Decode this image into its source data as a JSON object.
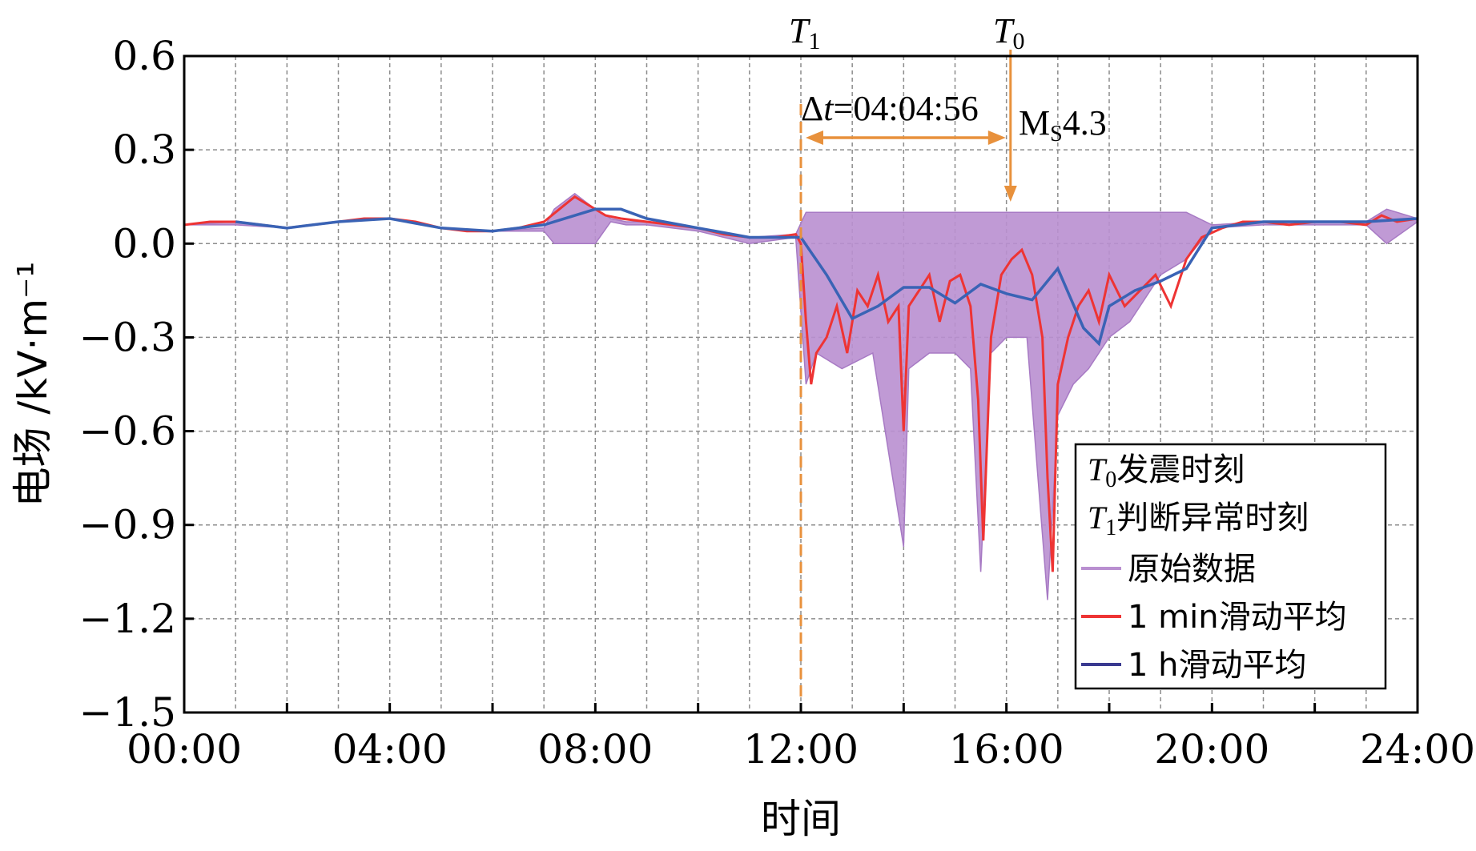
{
  "chart_data": {
    "type": "line",
    "ylabel": "电场 /kV·m⁻¹",
    "xlabel": "时间",
    "ylim": [
      -1.5,
      0.6
    ],
    "xlim_hours": [
      0,
      24
    ],
    "y_ticks": [
      0.6,
      0.3,
      0.0,
      -0.3,
      -0.6,
      -0.9,
      -1.2,
      -1.5
    ],
    "y_tick_labels": [
      "0.6",
      "0.3",
      "0.0",
      "−0.3",
      "−0.6",
      "−0.9",
      "−1.2",
      "−1.5"
    ],
    "x_ticks_hours": [
      0,
      4,
      8,
      12,
      16,
      20,
      24
    ],
    "x_tick_labels": [
      "00:00",
      "04:00",
      "08:00",
      "12:00",
      "16:00",
      "20:00",
      "24:00"
    ],
    "grid": true,
    "legend_position": "bottom-right",
    "annotations": {
      "t1_var": "T",
      "t1_sub": "1",
      "t1_hours": 12.0,
      "t0_var": "T",
      "t0_sub": "0",
      "t0_hours": 16.08,
      "delta_sym": "Δ",
      "delta_var": "t",
      "delta_value": "=04:04:56",
      "ms_main": "M",
      "ms_sub": "S",
      "ms_value": "4.3"
    },
    "legend": {
      "t0_var": "T",
      "t0_sub": "0",
      "t0_text": "发震时刻",
      "t1_var": "T",
      "t1_sub": "1",
      "t1_text": "判断异常时刻",
      "entries": [
        "原始数据",
        "1 min滑动平均",
        "1 h滑动平均"
      ]
    },
    "series": [
      {
        "name": "原始数据",
        "color": "#b98fd0",
        "x": [
          0,
          1,
          2,
          3,
          4,
          5,
          6,
          7,
          7.2,
          7.6,
          8.0,
          8.3,
          8.6,
          9,
          10,
          11,
          11.9,
          12.1,
          12.3,
          12.8,
          13.4,
          14.0,
          14.1,
          14.5,
          15.0,
          15.3,
          15.5,
          15.7,
          16.0,
          16.4,
          16.8,
          17.0,
          17.3,
          17.6,
          18.0,
          18.4,
          19.0,
          19.5,
          20.0,
          21,
          22,
          23,
          23.4,
          24
        ],
        "y_high": [
          0.06,
          0.07,
          0.05,
          0.07,
          0.08,
          0.05,
          0.04,
          0.05,
          0.11,
          0.16,
          0.11,
          0.08,
          0.07,
          0.07,
          0.05,
          0.02,
          0.03,
          0.1,
          0.1,
          0.1,
          0.1,
          0.1,
          0.1,
          0.1,
          0.1,
          0.1,
          0.1,
          0.1,
          0.1,
          0.1,
          0.1,
          0.1,
          0.1,
          0.1,
          0.1,
          0.1,
          0.1,
          0.1,
          0.06,
          0.07,
          0.07,
          0.07,
          0.11,
          0.08
        ],
        "y_low": [
          0.06,
          0.06,
          0.05,
          0.07,
          0.08,
          0.05,
          0.04,
          0.04,
          0.0,
          0.0,
          0.0,
          0.07,
          0.06,
          0.06,
          0.04,
          0.0,
          0.02,
          -0.45,
          -0.35,
          -0.4,
          -0.35,
          -0.97,
          -0.4,
          -0.35,
          -0.35,
          -0.4,
          -1.05,
          -0.35,
          -0.3,
          -0.3,
          -1.14,
          -0.55,
          -0.45,
          -0.4,
          -0.3,
          -0.25,
          -0.1,
          -0.05,
          0.05,
          0.06,
          0.06,
          0.06,
          0.0,
          0.07
        ]
      },
      {
        "name": "1 min滑动平均",
        "color": "#ee3434",
        "x": [
          0,
          0.5,
          1,
          1.5,
          2,
          2.5,
          3,
          3.5,
          4,
          4.5,
          5,
          5.5,
          6,
          6.5,
          7,
          7.3,
          7.6,
          7.9,
          8.2,
          8.5,
          9,
          9.5,
          10,
          10.5,
          11,
          11.5,
          11.9,
          12.0,
          12.1,
          12.2,
          12.3,
          12.5,
          12.7,
          12.9,
          13.1,
          13.3,
          13.5,
          13.7,
          13.9,
          14.0,
          14.1,
          14.3,
          14.5,
          14.7,
          14.9,
          15.1,
          15.3,
          15.45,
          15.55,
          15.7,
          15.9,
          16.1,
          16.3,
          16.5,
          16.7,
          16.8,
          16.9,
          17.0,
          17.2,
          17.4,
          17.6,
          17.8,
          18.0,
          18.3,
          18.6,
          18.9,
          19.2,
          19.5,
          19.8,
          20.2,
          20.6,
          21,
          21.5,
          22,
          22.5,
          23,
          23.3,
          23.6,
          24
        ],
        "y": [
          0.06,
          0.07,
          0.07,
          0.06,
          0.05,
          0.06,
          0.07,
          0.08,
          0.08,
          0.07,
          0.05,
          0.04,
          0.04,
          0.05,
          0.07,
          0.11,
          0.15,
          0.12,
          0.09,
          0.08,
          0.07,
          0.06,
          0.05,
          0.03,
          0.02,
          0.02,
          0.03,
          0.0,
          -0.25,
          -0.45,
          -0.35,
          -0.3,
          -0.2,
          -0.35,
          -0.15,
          -0.2,
          -0.1,
          -0.25,
          -0.2,
          -0.6,
          -0.2,
          -0.15,
          -0.1,
          -0.25,
          -0.12,
          -0.1,
          -0.2,
          -0.5,
          -0.95,
          -0.3,
          -0.1,
          -0.05,
          -0.02,
          -0.1,
          -0.3,
          -0.75,
          -1.05,
          -0.45,
          -0.3,
          -0.2,
          -0.15,
          -0.25,
          -0.1,
          -0.2,
          -0.15,
          -0.1,
          -0.2,
          -0.05,
          0.02,
          0.05,
          0.07,
          0.07,
          0.06,
          0.07,
          0.07,
          0.06,
          0.09,
          0.07,
          0.08
        ]
      },
      {
        "name": "1 h滑动平均",
        "color": "#3a63b5",
        "x": [
          1,
          2,
          3,
          4,
          5,
          6,
          7,
          8,
          8.5,
          9,
          10,
          11,
          11.5,
          12,
          12.5,
          13,
          13.5,
          14,
          14.5,
          15,
          15.5,
          16,
          16.5,
          17,
          17.5,
          17.8,
          18,
          18.5,
          19,
          19.5,
          20,
          21,
          22,
          23,
          24
        ],
        "y": [
          0.07,
          0.05,
          0.07,
          0.08,
          0.05,
          0.04,
          0.06,
          0.11,
          0.11,
          0.08,
          0.05,
          0.02,
          0.02,
          0.02,
          -0.1,
          -0.24,
          -0.2,
          -0.14,
          -0.14,
          -0.19,
          -0.13,
          -0.16,
          -0.18,
          -0.08,
          -0.27,
          -0.32,
          -0.2,
          -0.15,
          -0.12,
          -0.08,
          0.05,
          0.07,
          0.07,
          0.07,
          0.08
        ]
      }
    ]
  }
}
